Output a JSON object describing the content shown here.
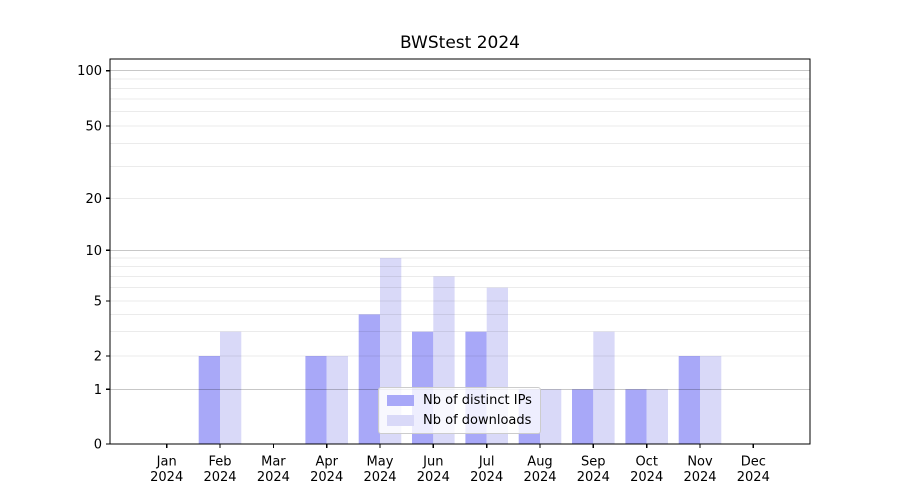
{
  "chart_data": {
    "type": "bar",
    "title": "BWStest 2024",
    "categories": [
      "Jan",
      "Feb",
      "Mar",
      "Apr",
      "May",
      "Jun",
      "Jul",
      "Aug",
      "Sep",
      "Oct",
      "Nov",
      "Dec"
    ],
    "category_year": "2024",
    "series": [
      {
        "name": "Nb of distinct IPs",
        "key": "ips",
        "color": "#a8a8f8",
        "values": [
          0,
          2,
          0,
          2,
          4,
          3,
          3,
          1,
          1,
          1,
          2,
          0
        ]
      },
      {
        "name": "Nb of downloads",
        "key": "downloads",
        "color": "#d9d9f8",
        "values": [
          0,
          3,
          0,
          2,
          9,
          7,
          6,
          1,
          3,
          1,
          2,
          0
        ]
      }
    ],
    "xlabel": "",
    "ylabel": "",
    "y_axis": {
      "scale": "symlog",
      "tick_labels": [
        "0",
        "1",
        "2",
        "5",
        "10",
        "20",
        "50",
        "100"
      ],
      "ticks": [
        0,
        1,
        2,
        5,
        10,
        20,
        50,
        100
      ],
      "ylim": [
        0,
        130
      ],
      "major_gridlines": [
        1,
        10,
        100
      ],
      "minor_gridlines": [
        2,
        3,
        4,
        5,
        6,
        7,
        8,
        9,
        20,
        30,
        40,
        50,
        60,
        70,
        80,
        90
      ]
    },
    "grid": true,
    "legend": {
      "position": "lower-center",
      "entries": [
        "Nb of distinct IPs",
        "Nb of downloads"
      ]
    }
  },
  "colors": {
    "bar_ips": "#a8a8f8",
    "bar_downloads": "#d9d9f8",
    "grid_major": "rgba(0,0,0,0.22)",
    "grid_minor": "rgba(0,0,0,0.08)",
    "axis": "#000000",
    "text": "#000000",
    "legend_border": "#cccccc",
    "legend_bg": "rgba(255,255,255,0.8)"
  }
}
